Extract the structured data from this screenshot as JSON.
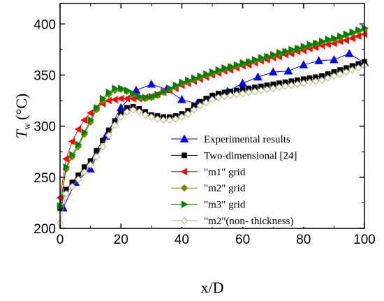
{
  "chart_data": {
    "type": "line",
    "xlabel": "x/D",
    "ylabel": "T",
    "ylabel_sub": "w",
    "ylabel_unit": "(°C)",
    "xlim": [
      0,
      100
    ],
    "ylim": [
      200,
      420
    ],
    "xticks": [
      0,
      20,
      40,
      60,
      80,
      100
    ],
    "yticks": [
      200,
      250,
      300,
      350,
      400
    ],
    "grid": false,
    "legend_position": "lower-right",
    "series": [
      {
        "name": "Experimental results",
        "marker": "triangle-up",
        "color": "#0000ff",
        "fill": "#0000ff",
        "x": [
          1,
          5,
          10,
          15,
          20,
          25,
          30,
          35,
          40,
          45,
          50,
          55,
          60,
          65,
          70,
          75,
          80,
          85,
          90,
          95,
          100
        ],
        "y": [
          220,
          245,
          258,
          290,
          318,
          335,
          341,
          336,
          326,
          322,
          329,
          334,
          342,
          348,
          353,
          354,
          360,
          364,
          365,
          371,
          362
        ]
      },
      {
        "name": "Two-dimensional [24]",
        "marker": "square",
        "color": "#000000",
        "fill": "#000000",
        "x": [
          0,
          2,
          4,
          6,
          8,
          10,
          12,
          14,
          16,
          18,
          20,
          22,
          24,
          26,
          28,
          30,
          32,
          34,
          36,
          38,
          40,
          42,
          44,
          46,
          48,
          50,
          52,
          54,
          56,
          58,
          60,
          62,
          64,
          66,
          68,
          70,
          72,
          74,
          76,
          78,
          80,
          82,
          84,
          86,
          88,
          90,
          92,
          94,
          96,
          98,
          100
        ],
        "y": [
          220,
          238,
          245,
          252,
          260,
          266,
          276,
          286,
          296,
          305,
          313,
          318,
          319,
          317,
          314,
          311,
          310,
          309,
          309,
          310,
          312,
          315,
          320,
          324,
          327,
          330,
          332,
          333,
          334,
          335,
          336,
          337,
          338,
          339,
          340,
          341,
          342,
          343,
          344,
          345,
          346,
          347,
          348,
          349,
          351,
          353,
          355,
          357,
          359,
          361,
          363
        ]
      },
      {
        "name": "\"m1\" grid",
        "marker": "triangle-left",
        "color": "#ff0000",
        "fill": "#ff0000",
        "x": [
          0,
          2,
          4,
          6,
          8,
          10,
          12,
          14,
          16,
          18,
          20,
          22,
          24,
          26,
          28,
          30,
          32,
          34,
          36,
          38,
          40,
          42,
          44,
          46,
          48,
          50,
          52,
          54,
          56,
          58,
          60,
          62,
          64,
          66,
          68,
          70,
          72,
          74,
          76,
          78,
          80,
          82,
          84,
          86,
          88,
          90,
          92,
          94,
          96,
          98,
          100
        ],
        "y": [
          230,
          268,
          285,
          297,
          306,
          313,
          318,
          322,
          325,
          326,
          327,
          327,
          327,
          327,
          328,
          329,
          331,
          333,
          335,
          337,
          340,
          342,
          344,
          346,
          348,
          350,
          352,
          354,
          355,
          357,
          359,
          360,
          362,
          364,
          365,
          367,
          368,
          370,
          371,
          373,
          374,
          376,
          377,
          379,
          380,
          381,
          383,
          384,
          386,
          388,
          390
        ]
      },
      {
        "name": "\"m2\" grid",
        "marker": "diamond",
        "color": "#808000",
        "fill": "#808000",
        "x": [
          0,
          2,
          4,
          6,
          8,
          10,
          12,
          14,
          16,
          18,
          20,
          22,
          24,
          26,
          28,
          30,
          32,
          34,
          36,
          38,
          40,
          42,
          44,
          46,
          48,
          50,
          52,
          54,
          56,
          58,
          60,
          62,
          64,
          66,
          68,
          70,
          72,
          74,
          76,
          78,
          80,
          82,
          84,
          86,
          88,
          90,
          92,
          94,
          96,
          98,
          100
        ],
        "y": [
          222,
          258,
          270,
          280,
          292,
          304,
          316,
          325,
          331,
          335,
          336,
          334,
          331,
          328,
          327,
          328,
          330,
          333,
          336,
          339,
          342,
          344,
          346,
          348,
          350,
          352,
          354,
          356,
          358,
          359,
          361,
          363,
          364,
          366,
          368,
          369,
          371,
          373,
          374,
          376,
          377,
          379,
          381,
          382,
          384,
          385,
          387,
          389,
          391,
          393,
          395
        ]
      },
      {
        "name": "\"m3\" grid",
        "marker": "triangle-right",
        "color": "#008000",
        "fill": "#008000",
        "x": [
          0,
          2,
          4,
          6,
          8,
          10,
          12,
          14,
          16,
          18,
          20,
          22,
          24,
          26,
          28,
          30,
          32,
          34,
          36,
          38,
          40,
          42,
          44,
          46,
          48,
          50,
          52,
          54,
          56,
          58,
          60,
          62,
          64,
          66,
          68,
          70,
          72,
          74,
          76,
          78,
          80,
          82,
          84,
          86,
          88,
          90,
          92,
          94,
          96,
          98,
          100
        ],
        "y": [
          222,
          260,
          272,
          282,
          294,
          306,
          318,
          327,
          333,
          337,
          337,
          335,
          332,
          329,
          328,
          329,
          331,
          334,
          337,
          340,
          343,
          345,
          347,
          349,
          351,
          353,
          355,
          357,
          358,
          360,
          362,
          363,
          365,
          367,
          368,
          370,
          372,
          373,
          375,
          376,
          378,
          380,
          381,
          383,
          385,
          386,
          388,
          390,
          392,
          394,
          396
        ]
      },
      {
        "name": "\"m2\"(non- thickness)",
        "marker": "diamond-open",
        "color": "#b7b07a",
        "fill": "#ffffff",
        "x": [
          0,
          2,
          4,
          6,
          8,
          10,
          12,
          14,
          16,
          18,
          20,
          22,
          24,
          26,
          28,
          30,
          32,
          34,
          36,
          38,
          40,
          42,
          44,
          46,
          48,
          50,
          52,
          54,
          56,
          58,
          60,
          62,
          64,
          66,
          68,
          70,
          72,
          74,
          76,
          78,
          80,
          82,
          84,
          86,
          88,
          90,
          92,
          94,
          96,
          98,
          100
        ],
        "y": [
          205,
          234,
          241,
          248,
          255,
          262,
          270,
          280,
          291,
          301,
          309,
          314,
          316,
          314,
          311,
          309,
          307,
          306,
          306,
          307,
          309,
          312,
          316,
          320,
          323,
          326,
          328,
          329,
          330,
          331,
          332,
          333,
          334,
          335,
          336,
          337,
          338,
          339,
          340,
          341,
          342,
          343,
          344,
          345,
          347,
          349,
          351,
          353,
          355,
          357,
          359
        ]
      }
    ]
  }
}
